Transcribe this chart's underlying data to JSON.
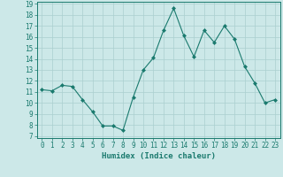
{
  "x": [
    0,
    1,
    2,
    3,
    4,
    5,
    6,
    7,
    8,
    9,
    10,
    11,
    12,
    13,
    14,
    15,
    16,
    17,
    18,
    19,
    20,
    21,
    22,
    23
  ],
  "y": [
    11.2,
    11.1,
    11.6,
    11.5,
    10.3,
    9.2,
    7.9,
    7.9,
    7.5,
    10.5,
    13.0,
    14.1,
    16.6,
    18.6,
    16.1,
    14.2,
    16.6,
    15.5,
    17.0,
    15.8,
    13.3,
    11.8,
    10.0,
    10.3
  ],
  "line_color": "#1a7a6e",
  "marker_color": "#1a7a6e",
  "bg_color": "#cce8e8",
  "grid_color": "#aacfcf",
  "xlabel": "Humidex (Indice chaleur)",
  "ylim_min": 7,
  "ylim_max": 19,
  "xlim_min": -0.5,
  "xlim_max": 23.5,
  "yticks": [
    7,
    8,
    9,
    10,
    11,
    12,
    13,
    14,
    15,
    16,
    17,
    18,
    19
  ],
  "xticks": [
    0,
    1,
    2,
    3,
    4,
    5,
    6,
    7,
    8,
    9,
    10,
    11,
    12,
    13,
    14,
    15,
    16,
    17,
    18,
    19,
    20,
    21,
    22,
    23
  ],
  "xtick_labels": [
    "0",
    "1",
    "2",
    "3",
    "4",
    "5",
    "6",
    "7",
    "8",
    "9",
    "10",
    "11",
    "12",
    "13",
    "14",
    "15",
    "16",
    "17",
    "18",
    "19",
    "20",
    "21",
    "22",
    "23"
  ],
  "ytick_labels": [
    "7",
    "8",
    "9",
    "10",
    "11",
    "12",
    "13",
    "14",
    "15",
    "16",
    "17",
    "18",
    "19"
  ],
  "tick_fontsize": 5.5,
  "xlabel_fontsize": 6.5,
  "line_width": 0.8,
  "marker_size": 2.0
}
